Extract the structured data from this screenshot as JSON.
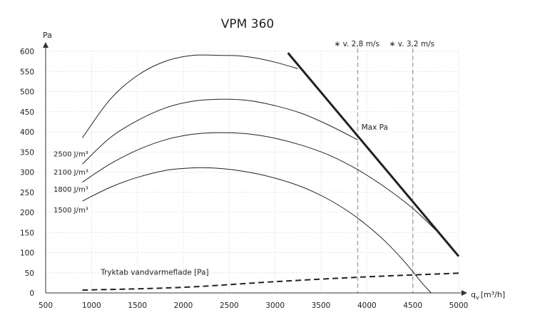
{
  "chart_data": {
    "type": "line",
    "title": "VPM 360",
    "ylabel": "Pa",
    "xlabel": "q",
    "xlabel_sub": "v",
    "xlabel_unit": "[m³/h]",
    "xlim": [
      500,
      5000
    ],
    "ylim": [
      0,
      600
    ],
    "xticks": [
      500,
      1000,
      1500,
      2000,
      2500,
      3000,
      3500,
      4000,
      4500,
      5000
    ],
    "yticks": [
      0,
      50,
      100,
      150,
      200,
      250,
      300,
      350,
      400,
      450,
      500,
      550,
      600
    ],
    "grid": true,
    "series": [
      {
        "name": "2500 J/m³",
        "x": [
          900,
          1200,
          1500,
          1800,
          2100,
          2400,
          2600,
          2800,
          3000,
          3250
        ],
        "y": [
          385,
          480,
          540,
          575,
          590,
          590,
          589,
          583,
          573,
          557
        ]
      },
      {
        "name": "2100 J/m³",
        "x": [
          900,
          1200,
          1500,
          1800,
          2100,
          2400,
          2700,
          3000,
          3300,
          3600,
          3900
        ],
        "y": [
          320,
          385,
          428,
          459,
          476,
          481,
          478,
          465,
          445,
          415,
          380
        ]
      },
      {
        "name": "1800 J/m³",
        "x": [
          900,
          1200,
          1500,
          1800,
          2100,
          2400,
          2700,
          3000,
          3300,
          3600,
          3900,
          4200,
          4500,
          4750
        ],
        "y": [
          275,
          320,
          355,
          380,
          394,
          398,
          395,
          384,
          366,
          341,
          306,
          262,
          210,
          156
        ]
      },
      {
        "name": "1500 J/m³",
        "x": [
          900,
          1200,
          1500,
          1800,
          2000,
          2200,
          2400,
          2600,
          2800,
          3000,
          3200,
          3400,
          3600,
          3800,
          4000,
          4200,
          4400,
          4600,
          4700
        ],
        "y": [
          228,
          262,
          287,
          304,
          309,
          311,
          309,
          304,
          296,
          285,
          271,
          253,
          230,
          202,
          168,
          128,
          80,
          25,
          0
        ]
      }
    ],
    "max_line": {
      "label": "Max Pa",
      "x": [
        3140,
        5000
      ],
      "y": [
        596,
        91
      ]
    },
    "pressure_drop": {
      "label": "Tryktab vandvarmeflade [Pa]",
      "x": [
        900,
        2000,
        3000,
        4000,
        5000
      ],
      "y": [
        7,
        14,
        28,
        40,
        49
      ]
    },
    "velocity_markers": [
      {
        "label": "∗ v. 2,8 m/s",
        "x": 3900
      },
      {
        "label": "∗ v. 3,2 m/s",
        "x": 4500
      }
    ]
  }
}
